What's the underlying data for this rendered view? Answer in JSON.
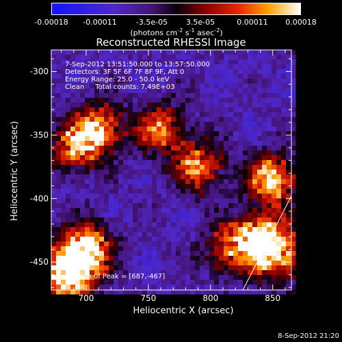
{
  "colorbar": {
    "ticks": [
      "-0.00018",
      "-0.00011",
      "-3.5e-05",
      "3.5e-05",
      "0.00011",
      "0.00018"
    ],
    "tick_values": [
      -0.00018,
      -0.00011,
      -3.5e-05,
      3.5e-05,
      0.00011,
      0.00018
    ],
    "range": [
      -0.00018,
      0.00018
    ],
    "units_prefix": "(photons cm",
    "units_exp1": "-2",
    "units_mid": " s",
    "units_exp2": "-1",
    "units_mid2": " asec",
    "units_exp3": "-2",
    "units_suffix": ")"
  },
  "chart_data": {
    "type": "heatmap",
    "title": "Reconstructed RHESSI Image",
    "xlabel": "Heliocentric X (arcsec)",
    "ylabel": "Heliocentric Y (arcsec)",
    "xlim": [
      672,
      865
    ],
    "ylim": [
      -472,
      -283
    ],
    "x_ticks": [
      700,
      750,
      800,
      850
    ],
    "y_ticks": [
      -300,
      -350,
      -400,
      -450
    ],
    "colormap": "rainbow-blue-purple-red-yellow-white",
    "annotations": [
      "7-Sep-2012 13:51:50.000 to 13:57:50.000",
      "Detectors: 3F 5F 6F 7F 8F 9F, Att 0",
      "Energy Range: 25.0 - 50.0 keV",
      "Clean     Total counts: 7.49E+03"
    ],
    "peak_label": "Position of Peak = [687,-467]",
    "peak": [
      687,
      -467
    ],
    "limb_line": [
      [
        826,
        -472
      ],
      [
        865,
        -398
      ]
    ],
    "hot_regions": [
      {
        "x": 685,
        "y": -460,
        "level": 1.0
      },
      {
        "x": 700,
        "y": -440,
        "level": 0.9
      },
      {
        "x": 710,
        "y": -345,
        "level": 0.75
      },
      {
        "x": 690,
        "y": -360,
        "level": 0.6
      },
      {
        "x": 760,
        "y": -345,
        "level": 0.6
      },
      {
        "x": 790,
        "y": -375,
        "level": 0.65
      },
      {
        "x": 850,
        "y": -385,
        "level": 0.8
      },
      {
        "x": 840,
        "y": -430,
        "level": 0.75
      },
      {
        "x": 815,
        "y": -440,
        "level": 0.55
      },
      {
        "x": 855,
        "y": -445,
        "level": 0.7
      }
    ]
  },
  "stamp": "8-Sep-2012 21:20"
}
